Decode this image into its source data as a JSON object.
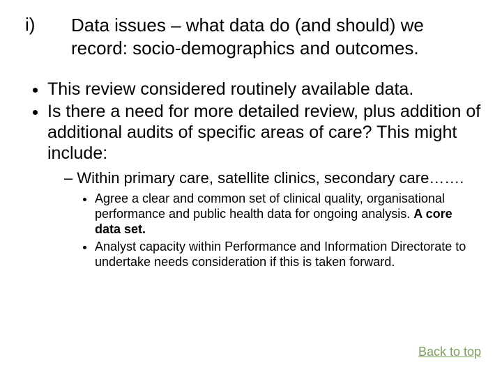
{
  "title": {
    "marker": "i)",
    "text": "Data issues – what data do (and should) we record: socio-demographics and outcomes."
  },
  "bullets": {
    "b1": "This review considered routinely available data.",
    "b2": "Is there a need for more detailed review, plus addition of additional audits of specific areas of care? This might include:",
    "sub1": "Within primary care, satellite clinics, secondary care…….",
    "sub1a_pre": "Agree a clear and common set of clinical quality, organisational performance and public health data for ongoing analysis. ",
    "sub1a_bold": "A core data set.",
    "sub1b": "Analyst capacity within Performance and Information Directorate to undertake needs consideration if this is taken forward."
  },
  "link": {
    "label": "Back to top",
    "color": "#80a060"
  },
  "colors": {
    "background": "#ffffff",
    "text": "#000000"
  },
  "typography": {
    "title_fontsize": 26,
    "level1_fontsize": 25,
    "level2_fontsize": 22,
    "level3_fontsize": 18,
    "font_family": "Arial"
  }
}
